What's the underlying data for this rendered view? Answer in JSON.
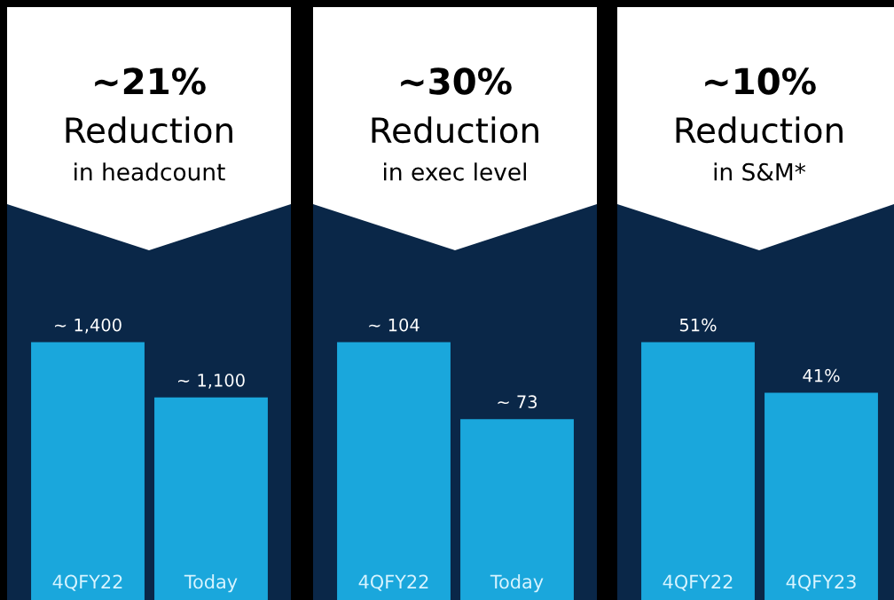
{
  "chart_data": [
    {
      "type": "bar",
      "title": "~21%",
      "subtitle": "Reduction",
      "annotations": [
        "in headcount"
      ],
      "categories": [
        "4QFY22",
        "Today"
      ],
      "values": [
        1400,
        1100
      ],
      "value_labels": [
        "~ 1,400",
        "~ 1,100"
      ],
      "color": "#1aa7dc"
    },
    {
      "type": "bar",
      "title": "~30%",
      "subtitle": "Reduction",
      "annotations": [
        "in exec level"
      ],
      "categories": [
        "4QFY22",
        "Today"
      ],
      "values": [
        104,
        73
      ],
      "value_labels": [
        "~ 104",
        "~ 73"
      ],
      "color": "#1aa7dc"
    },
    {
      "type": "bar",
      "title": "~10%",
      "subtitle": "Reduction",
      "annotations": [
        "in S&M*"
      ],
      "categories": [
        "4QFY22",
        "4QFY23"
      ],
      "values": [
        51,
        41
      ],
      "value_labels": [
        "51%",
        "41%"
      ],
      "color": "#1aa7dc"
    }
  ]
}
